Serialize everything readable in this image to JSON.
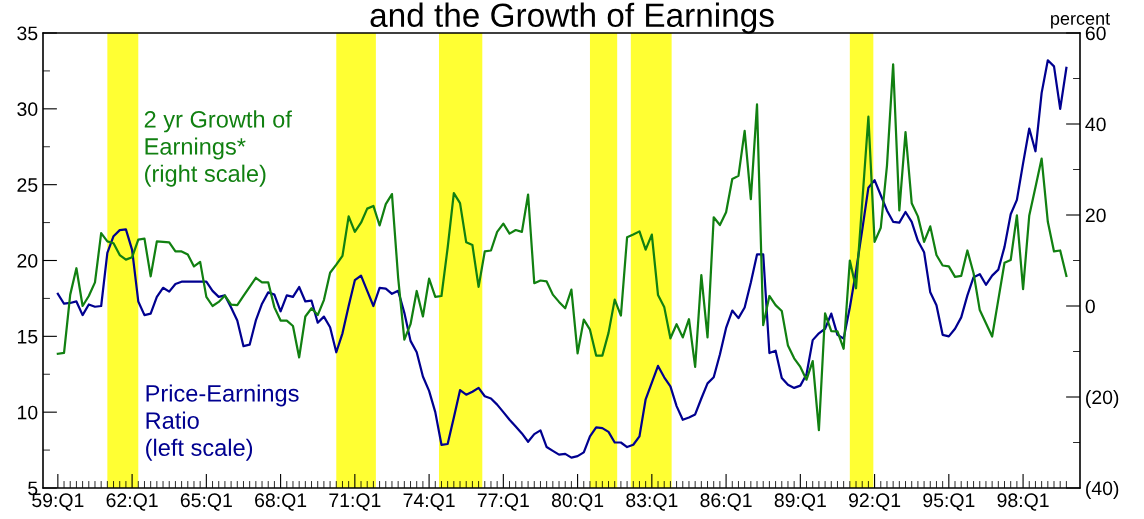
{
  "chart_data": {
    "type": "line",
    "title": "and the Growth of Earnings",
    "y2label": "percent",
    "categories": [
      "59:Q1",
      null,
      null,
      null,
      null,
      null,
      null,
      null,
      null,
      null,
      null,
      null,
      "62:Q1",
      null,
      null,
      null,
      null,
      null,
      null,
      null,
      null,
      null,
      null,
      null,
      "65:Q1",
      null,
      null,
      null,
      null,
      null,
      null,
      null,
      null,
      null,
      null,
      null,
      "68:Q1",
      null,
      null,
      null,
      null,
      null,
      null,
      null,
      null,
      null,
      null,
      null,
      "71:Q1",
      null,
      null,
      null,
      null,
      null,
      null,
      null,
      null,
      null,
      null,
      null,
      "74:Q1",
      null,
      null,
      null,
      null,
      null,
      null,
      null,
      null,
      null,
      null,
      null,
      "77:Q1",
      null,
      null,
      null,
      null,
      null,
      null,
      null,
      null,
      null,
      null,
      null,
      "80:Q1",
      null,
      null,
      null,
      null,
      null,
      null,
      null,
      null,
      null,
      null,
      null,
      "83:Q1",
      null,
      null,
      null,
      null,
      null,
      null,
      null,
      null,
      null,
      null,
      null,
      "86:Q1",
      null,
      null,
      null,
      null,
      null,
      null,
      null,
      null,
      null,
      null,
      null,
      "89:Q1",
      null,
      null,
      null,
      null,
      null,
      null,
      null,
      null,
      null,
      null,
      null,
      "92:Q1",
      null,
      null,
      null,
      null,
      null,
      null,
      null,
      null,
      null,
      null,
      null,
      "95:Q1",
      null,
      null,
      null,
      null,
      null,
      null,
      null,
      null,
      null,
      null,
      null,
      "98:Q1",
      null,
      null,
      null,
      null,
      null,
      null,
      null
    ],
    "ylim": [
      5,
      35
    ],
    "yticks": [
      5,
      {
        "value": 7.5,
        "label": null
      },
      10,
      {
        "value": 12.5,
        "label": null
      },
      15,
      {
        "value": 17.5,
        "label": null
      },
      20,
      {
        "value": 22.5,
        "label": null
      },
      25,
      {
        "value": 27.5,
        "label": null
      },
      30,
      {
        "value": 32.5,
        "label": null
      },
      35
    ],
    "y2lim": [
      -40,
      60
    ],
    "y2ticks": [
      {
        "value": -40,
        "label": "(40)"
      },
      {
        "value": -30,
        "label": null
      },
      {
        "value": -20,
        "label": "(20)"
      },
      {
        "value": -10,
        "label": null
      },
      0,
      {
        "value": 10,
        "label": null
      },
      20,
      {
        "value": 30,
        "label": null
      },
      40,
      {
        "value": 50,
        "label": null
      },
      60
    ],
    "grid": false,
    "legend": false,
    "marker": "none",
    "line_style": "solid",
    "series": [
      {
        "name": "Price-Earnings\nRatio\n(left scale)",
        "color": "#000090",
        "axis": "y",
        "values": [
          17.8,
          17.15,
          17.2,
          17.3,
          16.4,
          17.1,
          16.95,
          17.0,
          20.5,
          21.6,
          22.0,
          22.05,
          20.7,
          17.3,
          16.4,
          16.5,
          17.6,
          18.2,
          17.95,
          18.45,
          18.6,
          18.6,
          18.6,
          18.6,
          18.6,
          18.0,
          17.6,
          17.7,
          16.9,
          16.05,
          14.35,
          14.45,
          16.05,
          17.15,
          17.9,
          17.75,
          16.65,
          17.7,
          17.6,
          18.25,
          17.3,
          17.35,
          15.9,
          16.3,
          15.6,
          13.95,
          15.2,
          17.0,
          18.7,
          19.0,
          18.0,
          17.0,
          18.2,
          18.15,
          17.8,
          18.0,
          16.55,
          14.7,
          13.95,
          12.35,
          11.4,
          10.0,
          7.85,
          7.9,
          9.65,
          11.45,
          11.15,
          11.35,
          11.6,
          11.05,
          10.9,
          10.5,
          10.0,
          9.5,
          9.05,
          8.6,
          8.05,
          8.55,
          8.8,
          7.7,
          7.45,
          7.2,
          7.25,
          7.0,
          7.1,
          7.35,
          8.4,
          9.0,
          8.95,
          8.7,
          8.0,
          8.0,
          7.7,
          7.85,
          8.4,
          10.85,
          11.95,
          13.05,
          12.3,
          11.7,
          10.4,
          9.5,
          9.65,
          9.85,
          10.9,
          11.9,
          12.3,
          13.8,
          15.55,
          16.7,
          16.2,
          16.9,
          18.55,
          20.4,
          20.4,
          13.9,
          14.05,
          12.25,
          11.8,
          11.6,
          11.75,
          12.5,
          14.75,
          15.2,
          15.5,
          16.5,
          15.1,
          14.85,
          16.9,
          19.3,
          22.0,
          24.8,
          25.3,
          24.3,
          23.3,
          22.55,
          22.5,
          23.2,
          22.55,
          21.3,
          20.55,
          17.9,
          17.05,
          15.1,
          15.0,
          15.5,
          16.25,
          17.7,
          18.9,
          19.1,
          18.4,
          19.0,
          19.4,
          20.9,
          23.05,
          24.0,
          26.4,
          28.7,
          27.2,
          31.05,
          33.2,
          32.8,
          30.0,
          32.7
        ]
      },
      {
        "name": "2 yr Growth of\nEarnings*\n(right scale)",
        "color": "#118011",
        "axis": "y2",
        "values": [
          -10.5,
          -10.3,
          2.5,
          8.3,
          0,
          2.2,
          5.2,
          16,
          14.2,
          13.8,
          11.2,
          10.2,
          10.7,
          14.6,
          14.8,
          6.5,
          14.2,
          14.1,
          14,
          12,
          12,
          11.3,
          8.7,
          9.7,
          2,
          0,
          0.9,
          2.3,
          0.3,
          0.2,
          2.2,
          4.2,
          6.2,
          5.2,
          5.2,
          -0.3,
          -3.2,
          -3.2,
          -4.4,
          -11.3,
          -2.3,
          -0.5,
          -2,
          1.3,
          7.3,
          9.1,
          11,
          19.7,
          16.3,
          18.3,
          21.4,
          22,
          17.7,
          22.4,
          24.6,
          6.2,
          -7.4,
          -4,
          3.3,
          -2.3,
          6,
          2,
          2.2,
          12.8,
          24.8,
          22.6,
          14,
          13.4,
          4.2,
          12,
          12.2,
          16.3,
          18.1,
          15.9,
          16.7,
          16.3,
          24.5,
          5,
          5.6,
          5.4,
          2.5,
          0.9,
          -0.5,
          3.6,
          -10.4,
          -3,
          -5.2,
          -10.9,
          -10.9,
          -5.9,
          1.4,
          -2.1,
          15.1,
          15.7,
          16.4,
          12.4,
          15.7,
          2.4,
          -0.2,
          -7.1,
          -4,
          -6.9,
          -2.9,
          -13.4,
          6.8,
          -6.9,
          19.5,
          17.8,
          20.6,
          27.9,
          28.6,
          38.5,
          23.5,
          44.3,
          -4.2,
          2.2,
          0.2,
          -1.1,
          -8.7,
          -11.5,
          -13.4,
          -16.2,
          -12.1,
          -27.3,
          -1.6,
          -5.5,
          -5.6,
          -9.4,
          10,
          3.9,
          22.7,
          41.6,
          14.1,
          17.2,
          30.8,
          53.1,
          21,
          38.2,
          22.6,
          19.7,
          14.1,
          17.5,
          11.2,
          8.9,
          8.7,
          6.4,
          6.6,
          12.2,
          7.2,
          -0.9,
          -3.8,
          -6.7,
          1.4,
          9.5,
          10.1,
          19.9,
          3.7,
          19.9,
          26.1,
          32.4,
          18.5,
          12,
          12.2,
          6.6
        ]
      }
    ]
  }
}
